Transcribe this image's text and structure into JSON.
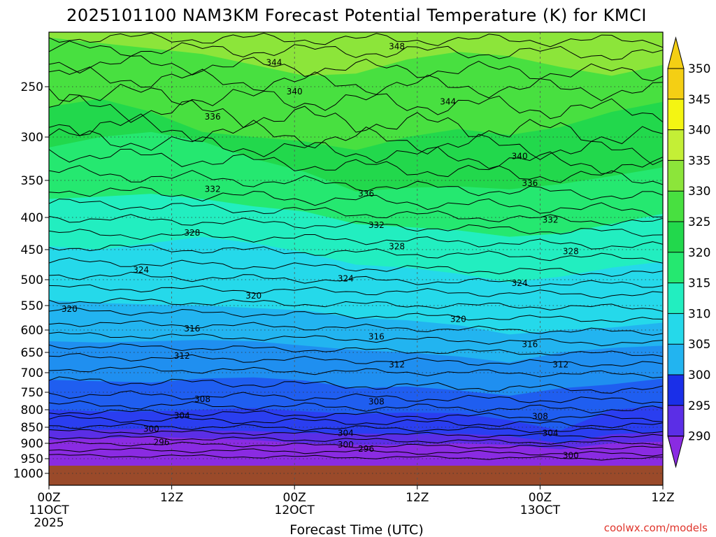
{
  "colors": {
    "ground": "#9a4a2a",
    "contour": "#000000",
    "credit": "#e0352c",
    "bands": [
      "#8a2be2",
      "#5b2ee6",
      "#2a3ef0",
      "#1f5ef0",
      "#1f8ff0",
      "#22b4f0",
      "#25d9ea",
      "#22eec0",
      "#25e870",
      "#22d84c",
      "#48e040",
      "#8ce53a",
      "#c4ef36",
      "#f4f512",
      "#f4cf14"
    ]
  },
  "chart_data": {
    "type": "contour",
    "title": "2025101100 NAM3KM Forecast Potential Temperature (K) for KMCI",
    "xlabel": "Forecast Time (UTC)",
    "ylabel": "",
    "x_ticks": [
      {
        "hour": 0,
        "line1": "00Z",
        "line2": "11OCT",
        "line3": "2025"
      },
      {
        "hour": 12,
        "line1": "12Z",
        "line2": "",
        "line3": ""
      },
      {
        "hour": 24,
        "line1": "00Z",
        "line2": "12OCT",
        "line3": ""
      },
      {
        "hour": 36,
        "line1": "12Z",
        "line2": "",
        "line3": ""
      },
      {
        "hour": 48,
        "line1": "00Z",
        "line2": "13OCT",
        "line3": ""
      },
      {
        "hour": 60,
        "line1": "12Z",
        "line2": "",
        "line3": ""
      }
    ],
    "y_ticks": [
      250,
      300,
      350,
      400,
      450,
      500,
      550,
      600,
      650,
      700,
      750,
      800,
      850,
      900,
      950,
      1000
    ],
    "y_range_hpa": [
      200,
      1050
    ],
    "x_range_hours": [
      0,
      60
    ],
    "colorbar": {
      "units": "K",
      "levels": [
        350,
        345,
        340,
        335,
        330,
        325,
        320,
        315,
        310,
        305,
        300,
        295,
        290
      ]
    },
    "contour_labels": [
      {
        "text": "348",
        "hour": 34,
        "p": 213
      },
      {
        "text": "344",
        "hour": 22,
        "p": 228
      },
      {
        "text": "344",
        "hour": 39,
        "p": 265
      },
      {
        "text": "340",
        "hour": 24,
        "p": 255
      },
      {
        "text": "340",
        "hour": 46,
        "p": 322
      },
      {
        "text": "336",
        "hour": 16,
        "p": 280
      },
      {
        "text": "336",
        "hour": 31,
        "p": 368
      },
      {
        "text": "336",
        "hour": 47,
        "p": 354
      },
      {
        "text": "332",
        "hour": 16,
        "p": 362
      },
      {
        "text": "332",
        "hour": 32,
        "p": 412
      },
      {
        "text": "332",
        "hour": 49,
        "p": 404
      },
      {
        "text": "328",
        "hour": 14,
        "p": 424
      },
      {
        "text": "328",
        "hour": 34,
        "p": 445
      },
      {
        "text": "328",
        "hour": 51,
        "p": 453
      },
      {
        "text": "324",
        "hour": 9,
        "p": 484
      },
      {
        "text": "324",
        "hour": 29,
        "p": 498
      },
      {
        "text": "324",
        "hour": 46,
        "p": 507
      },
      {
        "text": "320",
        "hour": 2,
        "p": 557
      },
      {
        "text": "320",
        "hour": 20,
        "p": 531
      },
      {
        "text": "320",
        "hour": 40,
        "p": 578
      },
      {
        "text": "316",
        "hour": 14,
        "p": 597
      },
      {
        "text": "316",
        "hour": 32,
        "p": 615
      },
      {
        "text": "316",
        "hour": 47,
        "p": 632
      },
      {
        "text": "312",
        "hour": 13,
        "p": 659
      },
      {
        "text": "312",
        "hour": 34,
        "p": 680
      },
      {
        "text": "312",
        "hour": 50,
        "p": 680
      },
      {
        "text": "308",
        "hour": 15,
        "p": 770
      },
      {
        "text": "308",
        "hour": 32,
        "p": 777
      },
      {
        "text": "308",
        "hour": 48,
        "p": 819
      },
      {
        "text": "304",
        "hour": 13,
        "p": 817
      },
      {
        "text": "304",
        "hour": 29,
        "p": 868
      },
      {
        "text": "304",
        "hour": 49,
        "p": 868
      },
      {
        "text": "300",
        "hour": 10,
        "p": 855
      },
      {
        "text": "300",
        "hour": 29,
        "p": 905
      },
      {
        "text": "300",
        "hour": 51,
        "p": 940
      },
      {
        "text": "296",
        "hour": 11,
        "p": 897
      },
      {
        "text": "296",
        "hour": 31,
        "p": 918
      }
    ]
  },
  "credit": "coolwx.com/models"
}
